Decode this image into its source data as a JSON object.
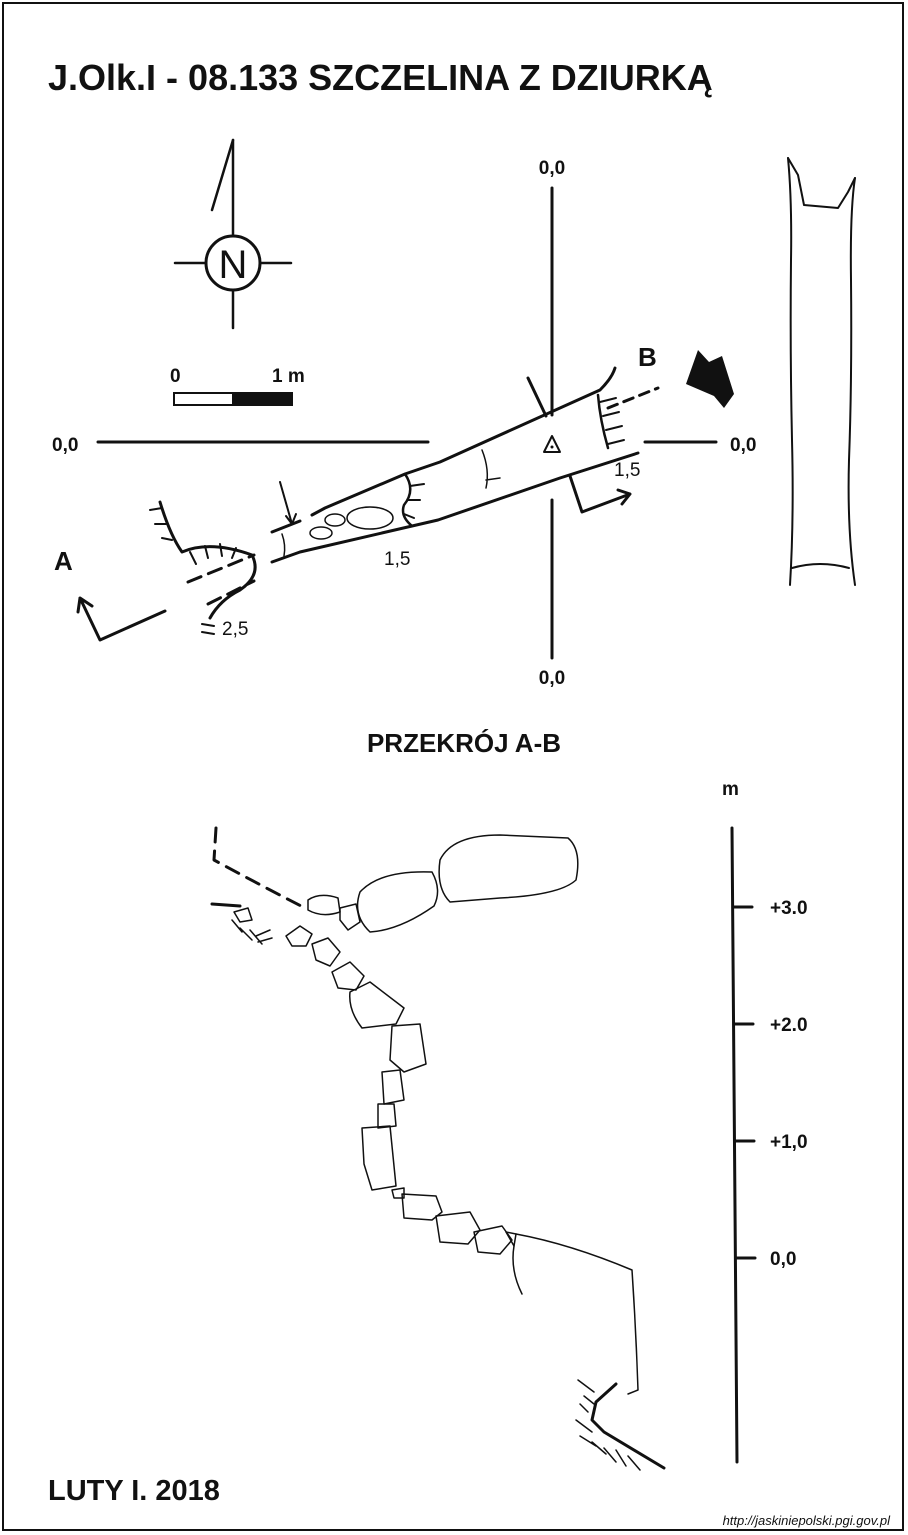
{
  "title": "J.Olk.I - 08.133  SZCZELINA Z DZIURKĄ",
  "compass": {
    "letter": "N"
  },
  "scale_bar": {
    "start_label": "0",
    "end_label": "1 m"
  },
  "plan": {
    "axis_top": "0,0",
    "axis_bottom": "0,0",
    "axis_left": "0,0",
    "axis_right": "0,0",
    "point_a": "A",
    "point_b": "B",
    "depth_right": "1,5",
    "depth_middle": "1,5",
    "depth_left": "2,5"
  },
  "section": {
    "title": "PRZEKRÓJ A-B",
    "unit": "m",
    "ticks": [
      "+3.0",
      "+2.0",
      "+1,0",
      "0,0"
    ]
  },
  "footer": {
    "date": "LUTY I. 2018",
    "source": "http://jaskiniepolski.pgi.gov.pl"
  }
}
